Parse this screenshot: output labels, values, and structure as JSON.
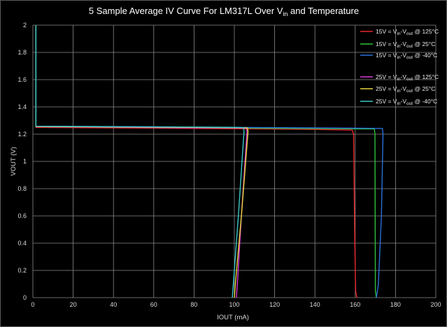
{
  "chart_data": {
    "type": "line",
    "title": {
      "before": "5 Sample Average IV Curve For LM317L Over V",
      "sub": "in",
      "after": " and Temperature"
    },
    "xlabel": "IOUT (mA)",
    "ylabel": "VOUT (V)",
    "xlim": [
      0,
      200
    ],
    "ylim": [
      0,
      2
    ],
    "xticks": [
      0,
      20,
      40,
      60,
      80,
      100,
      120,
      140,
      160,
      180,
      200
    ],
    "yticks": [
      0,
      0.2,
      0.4,
      0.6,
      0.8,
      1,
      1.2,
      1.4,
      1.6,
      1.8,
      2
    ],
    "ytick_labels": [
      "0",
      "0.2",
      "0.4",
      "0.6",
      "0.8",
      "1",
      "1.2",
      "1.4",
      "1.6",
      "1.8",
      "2"
    ],
    "grid": true,
    "legend_position": "top-right",
    "series": [
      {
        "name": "15V = Vin-Vout @ 125°C",
        "legend": {
          "pre": "15V = V",
          "sub1": "in",
          "mid": "-V",
          "sub2": "out",
          "post": " @ 125°C"
        },
        "color": "#e8242c",
        "points": [
          [
            1.5,
            2.0
          ],
          [
            1.5,
            1.25
          ],
          [
            50,
            1.245
          ],
          [
            100,
            1.24
          ],
          [
            140,
            1.235
          ],
          [
            158.5,
            1.23
          ],
          [
            159.2,
            1.2
          ],
          [
            159.5,
            0.8
          ],
          [
            159.8,
            0.4
          ],
          [
            160.2,
            0.05
          ],
          [
            160.8,
            0.0
          ]
        ]
      },
      {
        "name": "15V = Vin-Vout @ 25°C",
        "legend": {
          "pre": "15V = V",
          "sub1": "in",
          "mid": "-V",
          "sub2": "out",
          "post": " @ 25°C"
        },
        "color": "#2fc03a",
        "points": [
          [
            1.5,
            2.0
          ],
          [
            1.5,
            1.255
          ],
          [
            50,
            1.25
          ],
          [
            100,
            1.245
          ],
          [
            150,
            1.24
          ],
          [
            169.5,
            1.238
          ],
          [
            169.8,
            1.2
          ],
          [
            169.9,
            0.6
          ],
          [
            170.0,
            0.05
          ],
          [
            170.5,
            0.0
          ]
        ]
      },
      {
        "name": "15V = Vin-Vout @ -40°C",
        "legend": {
          "pre": "15V = V",
          "sub1": "in",
          "mid": "-V",
          "sub2": "out",
          "post": " @ -40°C"
        },
        "color": "#2a6fd8",
        "points": [
          [
            1.5,
            2.0
          ],
          [
            1.5,
            1.258
          ],
          [
            50,
            1.255
          ],
          [
            100,
            1.25
          ],
          [
            150,
            1.245
          ],
          [
            173.5,
            1.242
          ],
          [
            173.8,
            1.2
          ],
          [
            173.0,
            0.6
          ],
          [
            171.5,
            0.1
          ],
          [
            170.5,
            0.0
          ]
        ]
      },
      {
        "name": "25V = Vin-Vout @ 125°C",
        "legend": {
          "pre": "25V = V",
          "sub1": "in",
          "mid": "-V",
          "sub2": "out",
          "post": " @ 125°C"
        },
        "color": "#d83ad8",
        "points": [
          [
            1.5,
            2.0
          ],
          [
            1.5,
            1.255
          ],
          [
            50,
            1.25
          ],
          [
            100,
            1.245
          ],
          [
            106,
            1.243
          ],
          [
            106.3,
            1.22
          ],
          [
            103.5,
            0.6
          ],
          [
            101.5,
            0.1
          ],
          [
            101.0,
            0.0
          ]
        ]
      },
      {
        "name": "25V = Vin-Vout @ 25°C",
        "legend": {
          "pre": "25V = V",
          "sub1": "in",
          "mid": "-V",
          "sub2": "out",
          "post": " @ 25°C"
        },
        "color": "#e8d33a",
        "points": [
          [
            1.5,
            2.0
          ],
          [
            1.5,
            1.256
          ],
          [
            50,
            1.252
          ],
          [
            100,
            1.248
          ],
          [
            106.5,
            1.246
          ],
          [
            106.8,
            1.22
          ],
          [
            103.5,
            0.6
          ],
          [
            100.5,
            0.1
          ],
          [
            100.0,
            0.0
          ]
        ]
      },
      {
        "name": "25V = Vin-Vout @ -40°C",
        "legend": {
          "pre": "25V = V",
          "sub1": "in",
          "mid": "-V",
          "sub2": "out",
          "post": " @ -40°C"
        },
        "color": "#3ac8c8",
        "points": [
          [
            1.5,
            2.0
          ],
          [
            1.5,
            1.258
          ],
          [
            50,
            1.254
          ],
          [
            100,
            1.25
          ],
          [
            104.5,
            1.248
          ],
          [
            104.8,
            1.22
          ],
          [
            102.0,
            0.6
          ],
          [
            99.5,
            0.1
          ],
          [
            99.0,
            0.0
          ]
        ]
      }
    ]
  }
}
